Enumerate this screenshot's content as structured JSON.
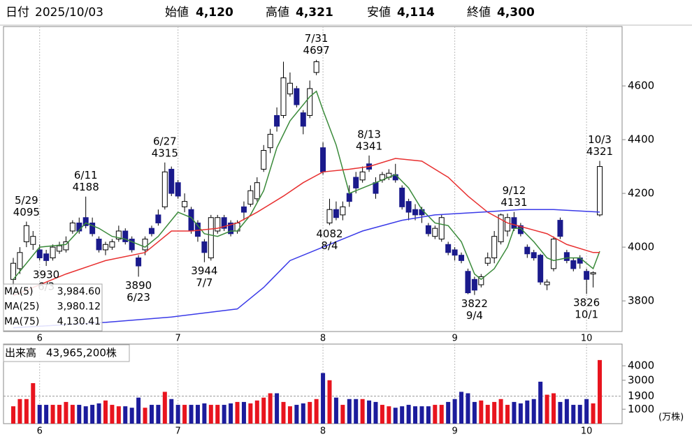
{
  "header": [
    {
      "label": "日付",
      "value": "2025/10/03",
      "color": "#000000",
      "bold": false
    },
    {
      "label": "始値",
      "value": "4,120",
      "color": "#000000",
      "bold": true
    },
    {
      "label": "高値",
      "value": "4,321",
      "color": "#e00000",
      "bold": true
    },
    {
      "label": "安値",
      "value": "4,114",
      "color": "#007000",
      "bold": true
    },
    {
      "label": "終値",
      "value": "4,300",
      "color": "#000000",
      "bold": true
    }
  ],
  "chart_data": [
    {
      "type": "candlestick",
      "categories": [
        null,
        null,
        null,
        null,
        "6",
        null,
        null,
        null,
        null,
        null,
        null,
        null,
        null,
        null,
        null,
        null,
        null,
        null,
        null,
        null,
        null,
        null,
        null,
        null,
        null,
        "7",
        null,
        null,
        null,
        null,
        null,
        null,
        null,
        null,
        null,
        null,
        null,
        null,
        null,
        null,
        null,
        null,
        null,
        null,
        null,
        null,
        null,
        "8",
        null,
        null,
        null,
        null,
        null,
        null,
        null,
        null,
        null,
        null,
        null,
        null,
        null,
        null,
        null,
        null,
        null,
        null,
        null,
        "9",
        null,
        null,
        null,
        null,
        null,
        null,
        null,
        null,
        null,
        null,
        null,
        null,
        null,
        null,
        null,
        null,
        null,
        null,
        null,
        "10",
        null,
        null
      ],
      "open": [
        3880,
        3920,
        4020,
        4010,
        3990,
        3975,
        3960,
        3985,
        3990,
        4060,
        4090,
        4110,
        4090,
        4030,
        3990,
        4000,
        4030,
        4060,
        4030,
        3960,
        3990,
        4070,
        4120,
        4150,
        4290,
        4240,
        4150,
        4140,
        4090,
        4020,
        3960,
        4060,
        4110,
        4090,
        4060,
        4150,
        4160,
        4180,
        4290,
        4370,
        4490,
        4490,
        4570,
        4590,
        4500,
        4490,
        4650,
        4370,
        4090,
        4140,
        4120,
        4200,
        4260,
        4250,
        4310,
        4240,
        4250,
        4260,
        4270,
        4220,
        4170,
        4140,
        4140,
        4080,
        4040,
        4030,
        4010,
        3990,
        3970,
        3910,
        3880,
        3860,
        3940,
        3960,
        4020,
        4060,
        4110,
        4080,
        4000,
        3980,
        3970,
        3860,
        3920,
        4100,
        3980,
        3950,
        3960,
        3910,
        3900,
        4120
      ],
      "high": [
        3960,
        4000,
        4095,
        4060,
        4010,
        3990,
        4010,
        4020,
        4040,
        4100,
        4110,
        4188,
        4110,
        4040,
        4020,
        4030,
        4080,
        4070,
        4040,
        3970,
        4040,
        4080,
        4140,
        4315,
        4300,
        4250,
        4200,
        4150,
        4100,
        4030,
        4120,
        4120,
        4120,
        4100,
        4100,
        4170,
        4230,
        4260,
        4380,
        4440,
        4520,
        4690,
        4650,
        4600,
        4510,
        4620,
        4697,
        4390,
        4180,
        4170,
        4170,
        4230,
        4280,
        4300,
        4341,
        4260,
        4280,
        4290,
        4310,
        4230,
        4180,
        4160,
        4150,
        4090,
        4080,
        4120,
        4020,
        4000,
        3980,
        3920,
        3890,
        3900,
        3980,
        4060,
        4125,
        4125,
        4131,
        4090,
        4010,
        3990,
        3975,
        3880,
        4040,
        4110,
        3990,
        3960,
        3970,
        3920,
        3910,
        4321
      ],
      "low": [
        3850,
        3900,
        4000,
        3990,
        3950,
        3930,
        3950,
        3975,
        3980,
        4050,
        4050,
        4070,
        4040,
        3980,
        3970,
        3990,
        4020,
        4010,
        3980,
        3890,
        3970,
        4040,
        4080,
        4140,
        4190,
        4180,
        4130,
        4050,
        4020,
        3944,
        3950,
        4050,
        4060,
        4040,
        4050,
        4100,
        4150,
        4170,
        4280,
        4350,
        4430,
        4480,
        4560,
        4520,
        4420,
        4480,
        4640,
        4270,
        4082,
        4100,
        4100,
        4150,
        4200,
        4240,
        4280,
        4180,
        4240,
        4250,
        4240,
        4140,
        4100,
        4100,
        4090,
        4040,
        4030,
        4020,
        3970,
        3950,
        3940,
        3825,
        3822,
        3850,
        3930,
        3940,
        4010,
        4040,
        4060,
        4040,
        3960,
        3950,
        3860,
        3840,
        3910,
        4030,
        3940,
        3910,
        3920,
        3826,
        3850,
        4114
      ],
      "close": [
        3940,
        3980,
        4080,
        4040,
        3960,
        3950,
        4000,
        4005,
        4020,
        4090,
        4060,
        4080,
        4050,
        3990,
        4010,
        4020,
        4060,
        4020,
        3990,
        3930,
        4030,
        4050,
        4090,
        4280,
        4200,
        4190,
        4170,
        4060,
        4040,
        3980,
        4110,
        4110,
        4070,
        4050,
        4090,
        4130,
        4210,
        4240,
        4360,
        4420,
        4450,
        4630,
        4610,
        4530,
        4450,
        4590,
        4690,
        4280,
        4140,
        4110,
        4150,
        4170,
        4220,
        4280,
        4290,
        4200,
        4270,
        4275,
        4250,
        4150,
        4130,
        4120,
        4120,
        4050,
        4070,
        4110,
        3980,
        3970,
        3950,
        3830,
        3840,
        3890,
        3960,
        4040,
        4120,
        4110,
        4070,
        4050,
        3975,
        3960,
        3870,
        3870,
        4030,
        4040,
        3950,
        3920,
        3940,
        3880,
        3905,
        4300
      ],
      "up_color": "#ffffff",
      "down_color": "#1a1a8c",
      "series": [
        {
          "name": "MA(5)",
          "legend_label": "3,984.60",
          "color": "#3a8a3a",
          "x": [
            0,
            4,
            8,
            11,
            13,
            15,
            17,
            20,
            22,
            25,
            27,
            29,
            31,
            33,
            34,
            36,
            38,
            40,
            42,
            45,
            46,
            47,
            49,
            51,
            54,
            56,
            58,
            60,
            62,
            64,
            66,
            68,
            70,
            71,
            73,
            75,
            76,
            77,
            79,
            81,
            82,
            84,
            86,
            88,
            89
          ],
          "values": [
            3880,
            4000,
            4010,
            4090,
            4070,
            4040,
            4030,
            4000,
            4040,
            4130,
            4110,
            4050,
            4040,
            4060,
            4060,
            4120,
            4210,
            4370,
            4470,
            4560,
            4580,
            4510,
            4380,
            4200,
            4230,
            4250,
            4270,
            4220,
            4140,
            4090,
            4080,
            4020,
            3900,
            3880,
            3920,
            4000,
            4070,
            4070,
            4020,
            3960,
            3950,
            3960,
            3960,
            3920,
            3984.6
          ]
        },
        {
          "name": "MA(25)",
          "legend_label": "3,980.12",
          "color": "#e83030",
          "x": [
            0,
            8,
            14,
            20,
            22,
            24,
            27,
            31,
            34,
            37,
            41,
            44,
            47,
            51,
            54,
            58,
            62,
            66,
            69,
            72,
            75,
            78,
            81,
            84,
            88,
            89
          ],
          "values": [
            3820,
            3900,
            3950,
            3980,
            4020,
            4060,
            4060,
            4070,
            4090,
            4130,
            4190,
            4240,
            4280,
            4290,
            4300,
            4330,
            4320,
            4260,
            4190,
            4130,
            4090,
            4070,
            4050,
            4010,
            3980,
            3980.12
          ]
        },
        {
          "name": "MA(75)",
          "legend_label": "4,130.41",
          "color": "#3a3ae8",
          "x": [
            0,
            14,
            24,
            34,
            38,
            42,
            47,
            53,
            59,
            64,
            71,
            77,
            82,
            89
          ],
          "values": [
            3700,
            3720,
            3740,
            3770,
            3850,
            3950,
            4000,
            4060,
            4100,
            4120,
            4130,
            4140,
            4140,
            4130.41
          ]
        }
      ],
      "annotations": [
        {
          "x": 2,
          "date": "5/29",
          "value": 4095,
          "side": "above"
        },
        {
          "x": 5,
          "date": "6/3",
          "value": 3930,
          "side": "below"
        },
        {
          "x": 11,
          "date": "6/11",
          "value": 4188,
          "side": "above"
        },
        {
          "x": 19,
          "date": "6/23",
          "value": 3890,
          "side": "below"
        },
        {
          "x": 23,
          "date": "6/27",
          "value": 4315,
          "side": "above"
        },
        {
          "x": 29,
          "date": "7/7",
          "value": 3944,
          "side": "below"
        },
        {
          "x": 46,
          "date": "7/31",
          "value": 4697,
          "side": "above"
        },
        {
          "x": 48,
          "date": "8/4",
          "value": 4082,
          "side": "below"
        },
        {
          "x": 54,
          "date": "8/13",
          "value": 4341,
          "side": "above"
        },
        {
          "x": 70,
          "date": "9/4",
          "value": 3822,
          "side": "below"
        },
        {
          "x": 76,
          "date": "9/12",
          "value": 4131,
          "side": "above"
        },
        {
          "x": 87,
          "date": "10/1",
          "value": 3826,
          "side": "below"
        },
        {
          "x": 89,
          "date": "10/3",
          "value": 4321,
          "side": "above"
        }
      ],
      "ylim": [
        3686,
        4821
      ],
      "yticks": [
        3800,
        4000,
        4200,
        4400,
        4600
      ]
    },
    {
      "type": "bar",
      "title": "出来高",
      "current": "43,965,200株",
      "categories": [
        null,
        null,
        null,
        null,
        "6",
        null,
        null,
        null,
        null,
        null,
        null,
        null,
        null,
        null,
        null,
        null,
        null,
        null,
        null,
        null,
        null,
        null,
        null,
        null,
        null,
        "7",
        null,
        null,
        null,
        null,
        null,
        null,
        null,
        null,
        null,
        null,
        null,
        null,
        null,
        null,
        null,
        null,
        null,
        null,
        null,
        null,
        null,
        "8",
        null,
        null,
        null,
        null,
        null,
        null,
        null,
        null,
        null,
        null,
        null,
        null,
        null,
        null,
        null,
        null,
        null,
        null,
        null,
        "9",
        null,
        null,
        null,
        null,
        null,
        null,
        null,
        null,
        null,
        null,
        null,
        null,
        null,
        null,
        null,
        null,
        null,
        null,
        null,
        "10",
        null,
        null
      ],
      "values": [
        1200,
        1700,
        1700,
        2800,
        1300,
        1300,
        1300,
        1300,
        1500,
        1300,
        1300,
        1200,
        1300,
        1400,
        1600,
        1300,
        1200,
        1200,
        1100,
        1800,
        1100,
        1300,
        1300,
        2200,
        1700,
        1300,
        1300,
        1300,
        1300,
        1400,
        1300,
        1300,
        1300,
        1400,
        1500,
        1500,
        1400,
        1600,
        1800,
        2100,
        2100,
        1500,
        1200,
        1300,
        1400,
        1500,
        1700,
        3500,
        3000,
        1800,
        1300,
        1700,
        1700,
        1700,
        1600,
        1500,
        1300,
        1200,
        1100,
        1200,
        1300,
        1200,
        1200,
        1200,
        1300,
        1300,
        1500,
        1700,
        2200,
        2100,
        1500,
        1600,
        1300,
        1500,
        1700,
        1300,
        1500,
        1400,
        1600,
        1700,
        2900,
        2000,
        2100,
        1500,
        1700,
        1300,
        1300,
        1700,
        1400,
        4396.52
      ],
      "up_color": "#e8141e",
      "down_color": "#1c1c9c",
      "reference": {
        "value": 1900,
        "color": "#e8501e"
      },
      "unit": "(万株)",
      "ylim": [
        0,
        5500
      ],
      "yticks": [
        1000,
        3000,
        4000
      ]
    }
  ]
}
